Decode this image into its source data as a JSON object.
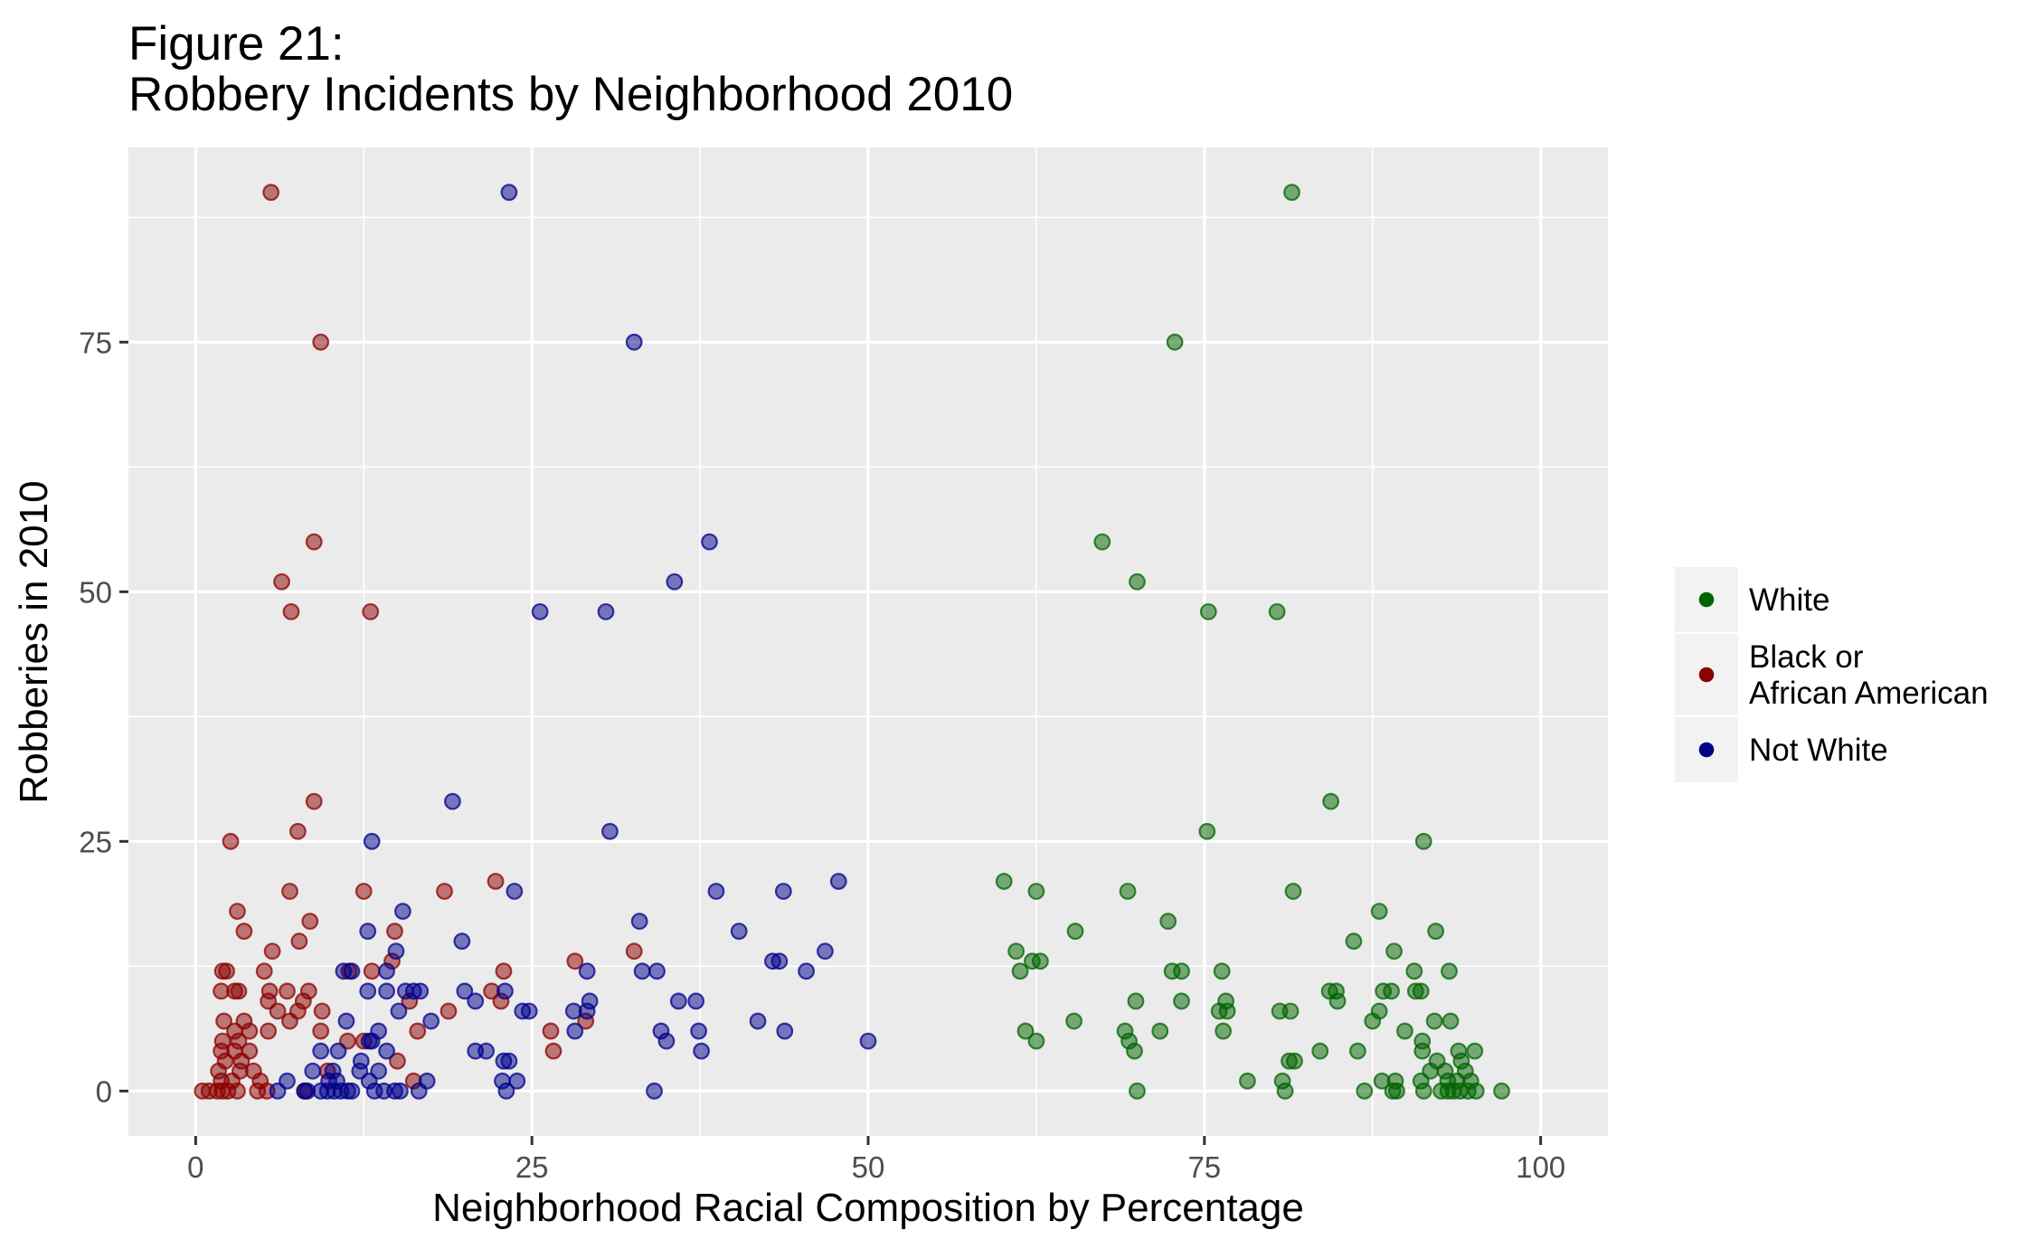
{
  "chart_data": {
    "type": "scatter",
    "title_lines": [
      "Figure 21:",
      "Robbery Incidents by Neighborhood 2010"
    ],
    "xlabel": "Neighborhood Racial Composition by Percentage",
    "ylabel": "Robberies in 2010",
    "xlim": [
      -5,
      105
    ],
    "ylim": [
      -4.5,
      94.5
    ],
    "x_ticks": [
      0,
      25,
      50,
      75,
      100
    ],
    "y_ticks": [
      0,
      25,
      50,
      75
    ],
    "grid": true,
    "legend_position": "right",
    "series": [
      {
        "name": "White",
        "color": "#006400",
        "points": [
          [
            81.5,
            90
          ],
          [
            72.8,
            75
          ],
          [
            67.4,
            55
          ],
          [
            70,
            51
          ],
          [
            75.3,
            48
          ],
          [
            80.4,
            48
          ],
          [
            84.4,
            29
          ],
          [
            75.2,
            26
          ],
          [
            91.3,
            25
          ],
          [
            60.1,
            21
          ],
          [
            62.5,
            20
          ],
          [
            69.3,
            20
          ],
          [
            81.6,
            20
          ],
          [
            88,
            18
          ],
          [
            72.3,
            17
          ],
          [
            92.2,
            16
          ],
          [
            65.4,
            16
          ],
          [
            86.1,
            15
          ],
          [
            61,
            14
          ],
          [
            89.1,
            14
          ],
          [
            62.2,
            13
          ],
          [
            62.8,
            13
          ],
          [
            72.6,
            12
          ],
          [
            73.3,
            12
          ],
          [
            76.3,
            12
          ],
          [
            61.3,
            12
          ],
          [
            90.6,
            12
          ],
          [
            93.2,
            12
          ],
          [
            84.3,
            10
          ],
          [
            84.8,
            10
          ],
          [
            88.3,
            10
          ],
          [
            88.9,
            10
          ],
          [
            90.7,
            10
          ],
          [
            91.1,
            10
          ],
          [
            73.3,
            9
          ],
          [
            76.6,
            9
          ],
          [
            84.9,
            9
          ],
          [
            69.9,
            9
          ],
          [
            76.1,
            8
          ],
          [
            76.7,
            8
          ],
          [
            80.6,
            8
          ],
          [
            81.4,
            8
          ],
          [
            88,
            8
          ],
          [
            87.5,
            7
          ],
          [
            92.1,
            7
          ],
          [
            93.3,
            7
          ],
          [
            65.3,
            7
          ],
          [
            61.7,
            6
          ],
          [
            69.1,
            6
          ],
          [
            71.7,
            6
          ],
          [
            76.4,
            6
          ],
          [
            89.9,
            6
          ],
          [
            62.5,
            5
          ],
          [
            69.4,
            5
          ],
          [
            91.2,
            5
          ],
          [
            69.8,
            4
          ],
          [
            83.6,
            4
          ],
          [
            86.4,
            4
          ],
          [
            91.2,
            4
          ],
          [
            93.9,
            4
          ],
          [
            95.1,
            4
          ],
          [
            81.3,
            3
          ],
          [
            81.7,
            3
          ],
          [
            92.3,
            3
          ],
          [
            94.1,
            3
          ],
          [
            91.8,
            2
          ],
          [
            92.9,
            2
          ],
          [
            94.4,
            2
          ],
          [
            78.2,
            1
          ],
          [
            80.8,
            1
          ],
          [
            88.2,
            1
          ],
          [
            89.2,
            1
          ],
          [
            91.1,
            1
          ],
          [
            93.1,
            1
          ],
          [
            93.8,
            1
          ],
          [
            94.8,
            1
          ],
          [
            70,
            0
          ],
          [
            81,
            0
          ],
          [
            86.9,
            0
          ],
          [
            89,
            0
          ],
          [
            89.3,
            0
          ],
          [
            91.3,
            0
          ],
          [
            92.6,
            0
          ],
          [
            93.1,
            0
          ],
          [
            93.5,
            0
          ],
          [
            94,
            0
          ],
          [
            94.6,
            0
          ],
          [
            95.2,
            0
          ],
          [
            97.1,
            0
          ]
        ]
      },
      {
        "name": "Black or African American",
        "color": "#8b0000",
        "points": [
          [
            5.6,
            90
          ],
          [
            9.3,
            75
          ],
          [
            8.8,
            55
          ],
          [
            6.4,
            51
          ],
          [
            7.1,
            48
          ],
          [
            13,
            48
          ],
          [
            8.8,
            29
          ],
          [
            7.6,
            26
          ],
          [
            2.6,
            25
          ],
          [
            22.3,
            21
          ],
          [
            7,
            20
          ],
          [
            12.5,
            20
          ],
          [
            18.5,
            20
          ],
          [
            3.1,
            18
          ],
          [
            8.5,
            17
          ],
          [
            3.6,
            16
          ],
          [
            14.8,
            16
          ],
          [
            7.7,
            15
          ],
          [
            5.7,
            14
          ],
          [
            32.6,
            14
          ],
          [
            28.2,
            13
          ],
          [
            14.6,
            13
          ],
          [
            2,
            12
          ],
          [
            2.3,
            12
          ],
          [
            5.1,
            12
          ],
          [
            11.4,
            12
          ],
          [
            13.1,
            12
          ],
          [
            22.9,
            12
          ],
          [
            1.9,
            10
          ],
          [
            2.9,
            10
          ],
          [
            3.2,
            10
          ],
          [
            5.5,
            10
          ],
          [
            6.8,
            10
          ],
          [
            8.4,
            10
          ],
          [
            22,
            10
          ],
          [
            5.4,
            9
          ],
          [
            8,
            9
          ],
          [
            15.9,
            9
          ],
          [
            22.7,
            9
          ],
          [
            6.1,
            8
          ],
          [
            7.6,
            8
          ],
          [
            9.4,
            8
          ],
          [
            18.8,
            8
          ],
          [
            2.1,
            7
          ],
          [
            3.6,
            7
          ],
          [
            7,
            7
          ],
          [
            29,
            7
          ],
          [
            2.9,
            6
          ],
          [
            4,
            6
          ],
          [
            5.4,
            6
          ],
          [
            9.3,
            6
          ],
          [
            16.5,
            6
          ],
          [
            26.4,
            6
          ],
          [
            2,
            5
          ],
          [
            3.2,
            5
          ],
          [
            11.3,
            5
          ],
          [
            12.5,
            5
          ],
          [
            1.9,
            4
          ],
          [
            2.9,
            4
          ],
          [
            4,
            4
          ],
          [
            15,
            3
          ],
          [
            2.2,
            3
          ],
          [
            3.4,
            3
          ],
          [
            26.6,
            4
          ],
          [
            1.7,
            2
          ],
          [
            3.3,
            2
          ],
          [
            4.3,
            2
          ],
          [
            9.8,
            2
          ],
          [
            1.9,
            1
          ],
          [
            2.7,
            1
          ],
          [
            4.8,
            1
          ],
          [
            16.2,
            1
          ],
          [
            0.5,
            0
          ],
          [
            1,
            0
          ],
          [
            1.6,
            0
          ],
          [
            2,
            0
          ],
          [
            2.4,
            0
          ],
          [
            3.1,
            0
          ],
          [
            4.6,
            0
          ],
          [
            5.3,
            0
          ],
          [
            8.1,
            0
          ]
        ]
      },
      {
        "name": "Not White",
        "color": "#00008b",
        "points": [
          [
            23.3,
            90
          ],
          [
            32.6,
            75
          ],
          [
            38.2,
            55
          ],
          [
            35.6,
            51
          ],
          [
            25.6,
            48
          ],
          [
            30.5,
            48
          ],
          [
            19.1,
            29
          ],
          [
            30.8,
            26
          ],
          [
            13.1,
            25
          ],
          [
            47.8,
            21
          ],
          [
            38.7,
            20
          ],
          [
            43.7,
            20
          ],
          [
            23.7,
            20
          ],
          [
            15.4,
            18
          ],
          [
            33,
            17
          ],
          [
            12.8,
            16
          ],
          [
            40.4,
            16
          ],
          [
            19.8,
            15
          ],
          [
            14.9,
            14
          ],
          [
            46.8,
            14
          ],
          [
            42.9,
            13
          ],
          [
            43.4,
            13
          ],
          [
            11,
            12
          ],
          [
            14.2,
            12
          ],
          [
            29.1,
            12
          ],
          [
            33.2,
            12
          ],
          [
            34.3,
            12
          ],
          [
            45.4,
            12
          ],
          [
            11.6,
            12
          ],
          [
            12.8,
            10
          ],
          [
            14.2,
            10
          ],
          [
            15.6,
            10
          ],
          [
            16.2,
            10
          ],
          [
            16.7,
            10
          ],
          [
            20,
            10
          ],
          [
            23,
            10
          ],
          [
            29.3,
            9
          ],
          [
            35.9,
            9
          ],
          [
            37.2,
            9
          ],
          [
            20.8,
            9
          ],
          [
            15.1,
            8
          ],
          [
            24.3,
            8
          ],
          [
            24.8,
            8
          ],
          [
            28.1,
            8
          ],
          [
            29.1,
            8
          ],
          [
            11.2,
            7
          ],
          [
            17.5,
            7
          ],
          [
            41.8,
            7
          ],
          [
            12.9,
            5
          ],
          [
            13.6,
            6
          ],
          [
            28.2,
            6
          ],
          [
            34.6,
            6
          ],
          [
            37.4,
            6
          ],
          [
            43.8,
            6
          ],
          [
            13.1,
            5
          ],
          [
            35,
            5
          ],
          [
            50,
            5
          ],
          [
            9.3,
            4
          ],
          [
            10.6,
            4
          ],
          [
            14.2,
            4
          ],
          [
            20.8,
            4
          ],
          [
            21.6,
            4
          ],
          [
            37.6,
            4
          ],
          [
            12.3,
            3
          ],
          [
            22.9,
            3
          ],
          [
            23.3,
            3
          ],
          [
            8.7,
            2
          ],
          [
            10.2,
            2
          ],
          [
            12.2,
            2
          ],
          [
            13.6,
            2
          ],
          [
            6.8,
            1
          ],
          [
            9.9,
            1
          ],
          [
            10.5,
            1
          ],
          [
            12.9,
            1
          ],
          [
            17.2,
            1
          ],
          [
            22.8,
            1
          ],
          [
            23.9,
            1
          ],
          [
            6.1,
            0
          ],
          [
            8.1,
            0
          ],
          [
            8.3,
            0
          ],
          [
            9.3,
            0
          ],
          [
            9.8,
            0
          ],
          [
            10.3,
            0
          ],
          [
            10.8,
            0
          ],
          [
            11.3,
            0
          ],
          [
            11.6,
            0
          ],
          [
            13.3,
            0
          ],
          [
            14,
            0
          ],
          [
            14.8,
            0
          ],
          [
            15.2,
            0
          ],
          [
            16.6,
            0
          ],
          [
            23.1,
            0
          ],
          [
            34.1,
            0
          ]
        ]
      }
    ]
  }
}
